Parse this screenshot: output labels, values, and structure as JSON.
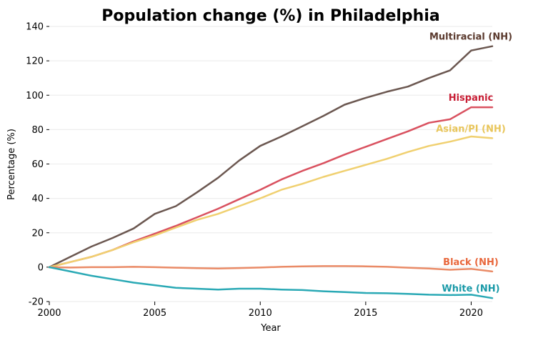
{
  "chart_data": {
    "type": "line",
    "title": "Population change (%) in Philadelphia",
    "xlabel": "Year",
    "ylabel": "Percentage (%)",
    "xlim": [
      2000,
      2021
    ],
    "ylim": [
      -20,
      140
    ],
    "x_ticks": [
      "2000",
      "2005",
      "2010",
      "2015",
      "2020"
    ],
    "y_ticks": [
      "-20",
      "0",
      "20",
      "40",
      "60",
      "80",
      "100",
      "120",
      "140"
    ],
    "grid": "horizontal",
    "x": [
      2000,
      2001,
      2002,
      2003,
      2004,
      2005,
      2006,
      2007,
      2008,
      2009,
      2010,
      2011,
      2012,
      2013,
      2014,
      2015,
      2016,
      2017,
      2018,
      2019,
      2020,
      2021
    ],
    "series": [
      {
        "name": "Multiracial (NH)",
        "color": "#6b5750",
        "label_color": "#5b3a2e",
        "values": [
          0,
          6,
          12,
          17,
          22.5,
          31,
          35.5,
          43.5,
          52,
          62,
          70.5,
          76,
          82,
          88,
          94.5,
          98.5,
          102,
          105,
          110,
          114.5,
          126,
          128.5
        ]
      },
      {
        "name": "Hispanic",
        "color": "#d9515f",
        "label_color": "#c81e35",
        "values": [
          0,
          3,
          6,
          10,
          15,
          19.5,
          24,
          29,
          34,
          39.5,
          45,
          51,
          56,
          60.5,
          65.5,
          70,
          74.5,
          79,
          84,
          86,
          93,
          93
        ]
      },
      {
        "name": "Asian/PI (NH)",
        "color": "#f0d070",
        "label_color": "#e8c55a",
        "values": [
          0,
          3,
          6,
          10,
          14.5,
          18.5,
          23,
          27.5,
          31,
          35.5,
          40,
          45,
          48.5,
          52.5,
          56,
          59.5,
          63,
          67,
          70.5,
          73,
          76,
          75
        ]
      },
      {
        "name": "Black (NH)",
        "color": "#ea8b67",
        "label_color": "#e8673c",
        "values": [
          0,
          -0.2,
          0,
          0,
          0.2,
          0,
          -0.3,
          -0.6,
          -0.8,
          -0.5,
          -0.2,
          0.2,
          0.5,
          0.6,
          0.6,
          0.5,
          0.2,
          -0.3,
          -0.8,
          -1.5,
          -1,
          -2.5
        ]
      },
      {
        "name": "White (NH)",
        "color": "#2aa9b5",
        "label_color": "#1a9aa8",
        "values": [
          0,
          -2.5,
          -5,
          -7,
          -9,
          -10.5,
          -12,
          -12.5,
          -13,
          -12.5,
          -12.5,
          -13,
          -13.3,
          -14,
          -14.5,
          -15,
          -15.2,
          -15.5,
          -16,
          -16.2,
          -16,
          -18
        ]
      }
    ]
  }
}
